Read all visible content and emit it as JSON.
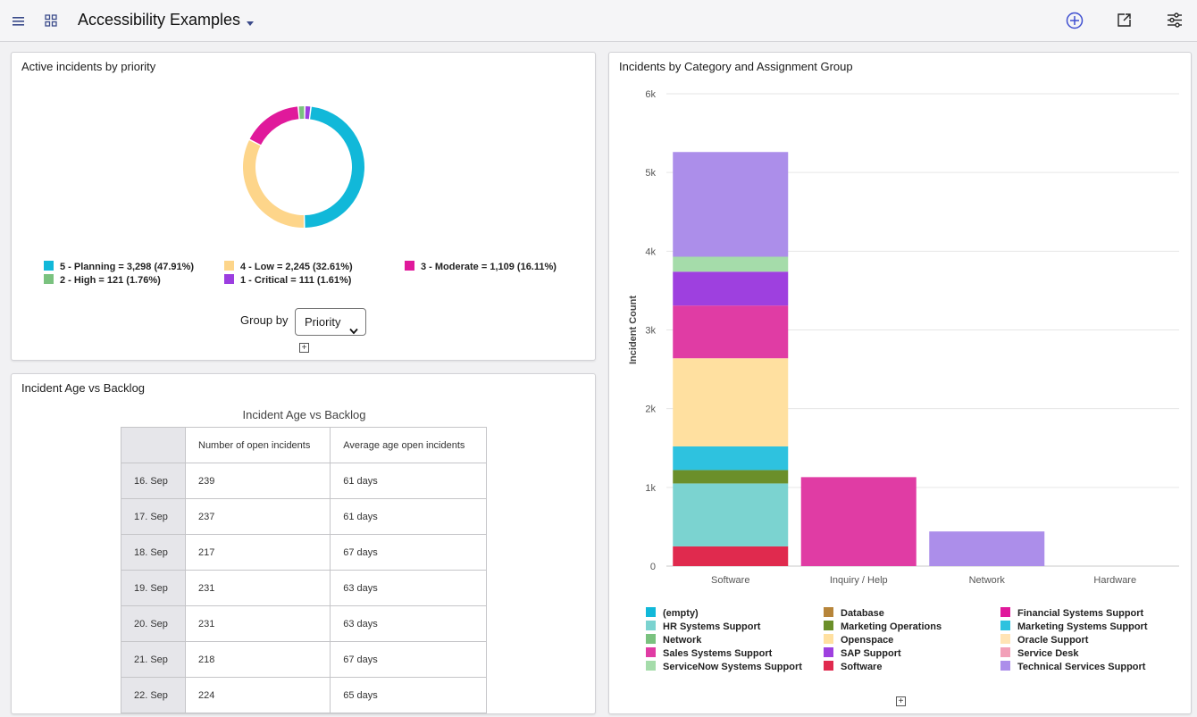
{
  "header": {
    "title": "Accessibility Examples",
    "icons": [
      "menu-icon",
      "grid-icon",
      "caret-down-icon",
      "add-circle-icon",
      "share-icon",
      "filter-settings-icon"
    ]
  },
  "donut_card": {
    "title": "Active incidents by priority",
    "group_by_label": "Group by",
    "group_by_value": "Priority",
    "expand_label": "+",
    "chart_data": {
      "type": "pie",
      "donut": true,
      "legend": "bottom",
      "slices": [
        {
          "label": "5 - Planning = 3,298 (47.91%)",
          "value": 3298,
          "percent": 47.91,
          "color": "#11b8d9"
        },
        {
          "label": "4 - Low = 2,245 (32.61%)",
          "value": 2245,
          "percent": 32.61,
          "color": "#fdd58a"
        },
        {
          "label": "3 - Moderate = 1,109 (16.11%)",
          "value": 1109,
          "percent": 16.11,
          "color": "#e0199b"
        },
        {
          "label": "2 - High = 121 (1.76%)",
          "value": 121,
          "percent": 1.76,
          "color": "#7ac27f"
        },
        {
          "label": "1 - Critical = 111 (1.61%)",
          "value": 111,
          "percent": 1.61,
          "color": "#9c3ee0"
        }
      ]
    }
  },
  "backlog_card": {
    "title": "Incident Age vs Backlog",
    "table_title": "Incident Age vs Backlog",
    "columns": [
      "",
      "Number of open incidents",
      "Average age open incidents"
    ],
    "rows": [
      [
        "16. Sep",
        "239",
        "61 days"
      ],
      [
        "17. Sep",
        "237",
        "61 days"
      ],
      [
        "18. Sep",
        "217",
        "67 days"
      ],
      [
        "19. Sep",
        "231",
        "63 days"
      ],
      [
        "20. Sep",
        "231",
        "63 days"
      ],
      [
        "21. Sep",
        "218",
        "67 days"
      ],
      [
        "22. Sep",
        "224",
        "65 days"
      ]
    ]
  },
  "bar_card": {
    "title": "Incidents by Category and Assignment Group",
    "expand_label": "+",
    "chart_data": {
      "type": "bar",
      "stacked": true,
      "ylabel": "Incident Count",
      "ylim": [
        0,
        6000
      ],
      "yticks": [
        "0",
        "1k",
        "2k",
        "3k",
        "4k",
        "5k",
        "6k"
      ],
      "ytick_values": [
        0,
        1000,
        2000,
        3000,
        4000,
        5000,
        6000
      ],
      "grid": true,
      "legend": "bottom",
      "categories": [
        "Software",
        "Inquiry / Help",
        "Network",
        "Hardware"
      ],
      "series": [
        {
          "name": "Software",
          "color": "#e02a4e",
          "values": [
            250,
            0,
            0,
            0
          ]
        },
        {
          "name": "HR Systems Support",
          "color": "#7bd3d0",
          "values": [
            800,
            0,
            0,
            0
          ]
        },
        {
          "name": "Marketing Operations",
          "color": "#6b8f2a",
          "values": [
            170,
            0,
            0,
            0
          ]
        },
        {
          "name": "Marketing Systems Support",
          "color": "#2ec2df",
          "values": [
            300,
            0,
            0,
            0
          ]
        },
        {
          "name": "Openspace",
          "color": "#ffe0a0",
          "values": [
            1120,
            0,
            0,
            0
          ]
        },
        {
          "name": "Financial Systems Support",
          "color": "#e03ca4",
          "values": [
            670,
            1130,
            0,
            0
          ]
        },
        {
          "name": "SAP Support",
          "color": "#9e40df",
          "values": [
            430,
            0,
            0,
            0
          ]
        },
        {
          "name": "ServiceNow Systems Support",
          "color": "#a5dcaa",
          "values": [
            190,
            0,
            0,
            0
          ]
        },
        {
          "name": "Technical Services Support",
          "color": "#ac8eea",
          "values": [
            1330,
            0,
            440,
            0
          ]
        }
      ],
      "legend_entries": [
        {
          "name": "(empty)",
          "color": "#11b8d9"
        },
        {
          "name": "Database",
          "color": "#b7853a"
        },
        {
          "name": "Financial Systems Support",
          "color": "#e0199b"
        },
        {
          "name": "HR Systems Support",
          "color": "#7bd3d0"
        },
        {
          "name": "Marketing Operations",
          "color": "#6b8f2a"
        },
        {
          "name": "Marketing Systems Support",
          "color": "#2ec2df"
        },
        {
          "name": "Network",
          "color": "#7ac27f"
        },
        {
          "name": "Openspace",
          "color": "#ffe0a0"
        },
        {
          "name": "Oracle Support",
          "color": "#ffe4b5"
        },
        {
          "name": "Sales Systems Support",
          "color": "#e03ca4"
        },
        {
          "name": "SAP Support",
          "color": "#9e40df"
        },
        {
          "name": "Service Desk",
          "color": "#f2a0b8"
        },
        {
          "name": "ServiceNow Systems Support",
          "color": "#a5dcaa"
        },
        {
          "name": "Software",
          "color": "#e02a4e"
        },
        {
          "name": "Technical Services Support",
          "color": "#ac8eea"
        }
      ]
    }
  }
}
